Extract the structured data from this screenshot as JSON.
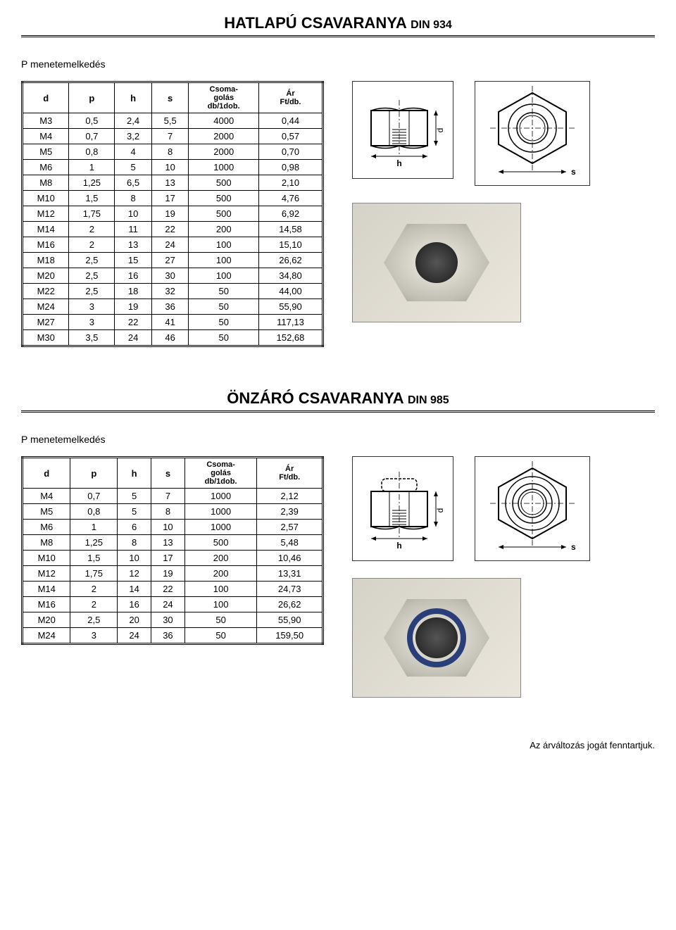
{
  "section1": {
    "title_main": "HATLAPÚ CSAVARANYA",
    "title_din": "DIN 934",
    "subtitle": "P menetemelkedés",
    "columns": [
      "d",
      "p",
      "h",
      "s",
      "Csoma-\ngolás\ndb/1dob.",
      "Ár\nFt/db."
    ],
    "rows": [
      [
        "M3",
        "0,5",
        "2,4",
        "5,5",
        "4000",
        "0,44"
      ],
      [
        "M4",
        "0,7",
        "3,2",
        "7",
        "2000",
        "0,57"
      ],
      [
        "M5",
        "0,8",
        "4",
        "8",
        "2000",
        "0,70"
      ],
      [
        "M6",
        "1",
        "5",
        "10",
        "1000",
        "0,98"
      ],
      [
        "M8",
        "1,25",
        "6,5",
        "13",
        "500",
        "2,10"
      ],
      [
        "M10",
        "1,5",
        "8",
        "17",
        "500",
        "4,76"
      ],
      [
        "M12",
        "1,75",
        "10",
        "19",
        "500",
        "6,92"
      ],
      [
        "M14",
        "2",
        "11",
        "22",
        "200",
        "14,58"
      ],
      [
        "M16",
        "2",
        "13",
        "24",
        "100",
        "15,10"
      ],
      [
        "M18",
        "2,5",
        "15",
        "27",
        "100",
        "26,62"
      ],
      [
        "M20",
        "2,5",
        "16",
        "30",
        "100",
        "34,80"
      ],
      [
        "M22",
        "2,5",
        "18",
        "32",
        "50",
        "44,00"
      ],
      [
        "M24",
        "3",
        "19",
        "36",
        "50",
        "55,90"
      ],
      [
        "M27",
        "3",
        "22",
        "41",
        "50",
        "117,13"
      ],
      [
        "M30",
        "3,5",
        "24",
        "46",
        "50",
        "152,68"
      ]
    ],
    "diagram": {
      "d_label": "d",
      "h_label": "h",
      "s_label": "s"
    }
  },
  "section2": {
    "title_main": "ÖNZÁRÓ CSAVARANYA",
    "title_din": "DIN 985",
    "subtitle": "P menetemelkedés",
    "columns": [
      "d",
      "p",
      "h",
      "s",
      "Csoma-\ngolás\ndb/1dob.",
      "Ár\nFt/db."
    ],
    "rows": [
      [
        "M4",
        "0,7",
        "5",
        "7",
        "1000",
        "2,12"
      ],
      [
        "M5",
        "0,8",
        "5",
        "8",
        "1000",
        "2,39"
      ],
      [
        "M6",
        "1",
        "6",
        "10",
        "1000",
        "2,57"
      ],
      [
        "M8",
        "1,25",
        "8",
        "13",
        "500",
        "5,48"
      ],
      [
        "M10",
        "1,5",
        "10",
        "17",
        "200",
        "10,46"
      ],
      [
        "M12",
        "1,75",
        "12",
        "19",
        "200",
        "13,31"
      ],
      [
        "M14",
        "2",
        "14",
        "22",
        "100",
        "24,73"
      ],
      [
        "M16",
        "2",
        "16",
        "24",
        "100",
        "26,62"
      ],
      [
        "M20",
        "2,5",
        "20",
        "30",
        "50",
        "55,90"
      ],
      [
        "M24",
        "3",
        "24",
        "36",
        "50",
        "159,50"
      ]
    ],
    "diagram": {
      "d_label": "d",
      "h_label": "h",
      "s_label": "s"
    }
  },
  "footer_text": "Az árváltozás jogát fenntartjuk.",
  "style": {
    "title_fontsize": 22,
    "din_fontsize": 16,
    "body_fontsize": 13,
    "table_border_color": "#000000",
    "background_color": "#ffffff",
    "text_color": "#000000",
    "photo_bg_gradient": [
      "#d5d2c8",
      "#eae6db"
    ],
    "locknut_ring_color": "#2a3f7a"
  }
}
